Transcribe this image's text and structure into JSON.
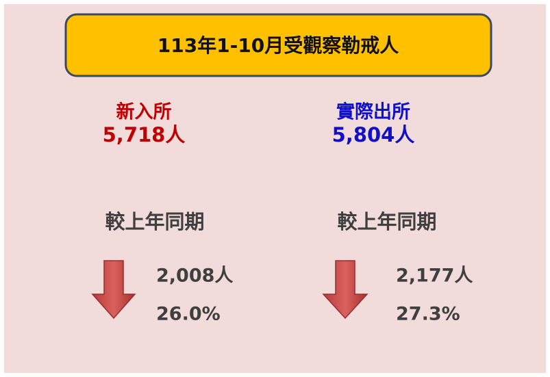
{
  "title": "113年1-10月受觀察勒戒人",
  "panels": [
    {
      "label": "新入所",
      "value": "5,718人",
      "compare": "較上年同期",
      "change": "2,008人",
      "percent": "26.0%"
    },
    {
      "label": "實際出所",
      "value": "5,804人",
      "compare": "較上年同期",
      "change": "2,177人",
      "percent": "27.3%"
    }
  ]
}
